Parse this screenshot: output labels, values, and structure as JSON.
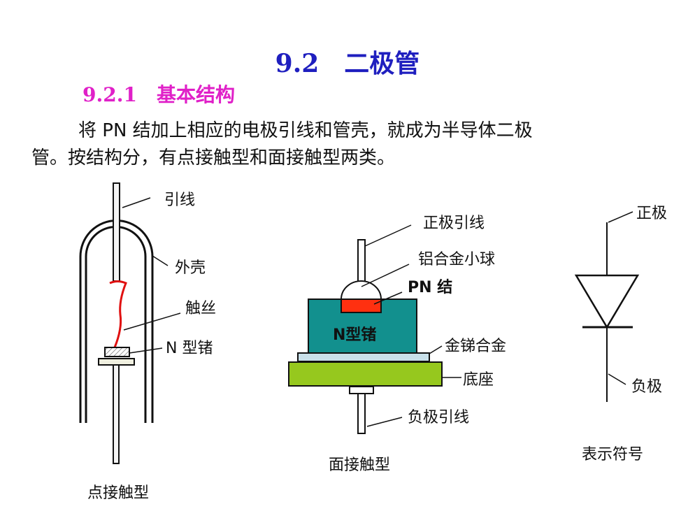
{
  "title": "9.2　二极管",
  "subtitle": "9.2.1　基本结构",
  "paragraph": {
    "line1": "将 PN 结加上相应的电极引线和管壳，就成为半导体二极",
    "line2": "管。按结构分，有点接触型和面接触型两类。"
  },
  "point_contact": {
    "caption": "点接触型",
    "labels": {
      "lead": "引线",
      "shell": "外壳",
      "wire": "触丝",
      "ge": "N 型锗"
    }
  },
  "junction": {
    "caption": "面接触型",
    "labels": {
      "anode_lead": "正极引线",
      "ball": "铝合金小球",
      "pn": "PN 结",
      "ge": "N型锗",
      "alloy": "金锑合金",
      "base": "底座",
      "cathode_lead": "负极引线"
    }
  },
  "symbol": {
    "caption": "表示符号",
    "anode": "正极",
    "cathode": "负极"
  },
  "colors": {
    "title": "#1f1fbf",
    "subtitle": "#e020c8",
    "ge": "#12908e",
    "pn": "#ff3010",
    "alloy": "#c8e0ea",
    "base": "#96c81e",
    "wire": "#e01010"
  }
}
